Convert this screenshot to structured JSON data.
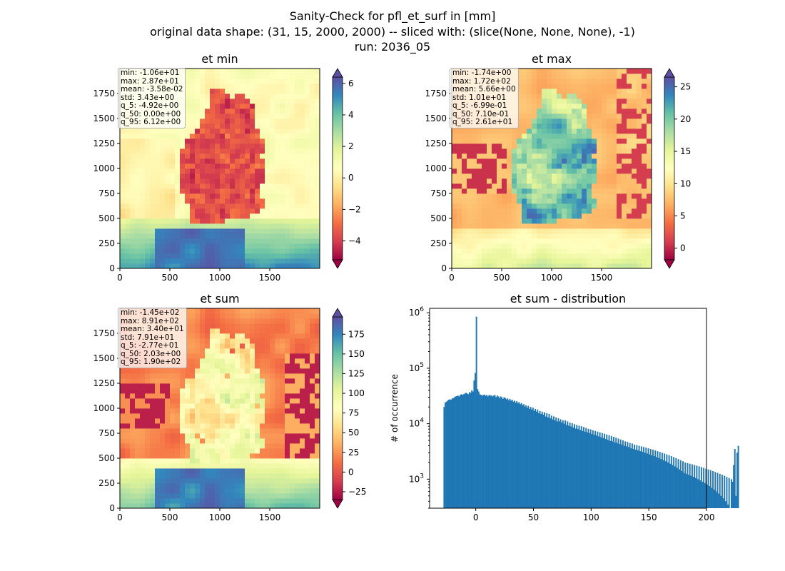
{
  "figure": {
    "title_line1": "Sanity-Check for pfl_et_surf in [mm]",
    "title_line2": "original data shape: (31, 15, 2000, 2000) -- sliced with: (slice(None, None, None), -1)",
    "title_line3": "run: 2036_05"
  },
  "chart_data": [
    {
      "type": "heatmap",
      "title": "et min",
      "x_ticks": [
        "0",
        "500",
        "1000",
        "1500"
      ],
      "y_ticks": [
        "0",
        "250",
        "500",
        "750",
        "1000",
        "1250",
        "1500",
        "1750"
      ],
      "xlim": [
        0,
        2000
      ],
      "ylim": [
        0,
        2000
      ],
      "colormap": "Spectral",
      "colorbar": {
        "range": [
          -5.2,
          6.4
        ],
        "ticks": [
          -4,
          -2,
          0,
          2,
          4,
          6
        ],
        "tick_labels": [
          "−4",
          "−2",
          "0",
          "2",
          "4",
          "6"
        ],
        "extend": "both"
      },
      "stats": [
        "min: -1.06e+01",
        "max: 2.87e+01",
        "mean: -3.58e-02",
        "std: 3.43e+00",
        "q_5: -4.92e+00",
        "q_50: 0.00e+00",
        "q_95: 6.12e+00"
      ]
    },
    {
      "type": "heatmap",
      "title": "et max",
      "x_ticks": [
        "0",
        "500",
        "1000",
        "1500"
      ],
      "y_ticks": [
        "0",
        "250",
        "500",
        "750",
        "1000",
        "1250",
        "1500",
        "1750"
      ],
      "xlim": [
        0,
        2000
      ],
      "ylim": [
        0,
        2000
      ],
      "colormap": "Spectral",
      "colorbar": {
        "range": [
          -1.8,
          26.5
        ],
        "ticks": [
          0,
          5,
          10,
          15,
          20,
          25
        ],
        "tick_labels": [
          "0",
          "5",
          "10",
          "15",
          "20",
          "25"
        ],
        "extend": "both"
      },
      "stats": [
        "min: -1.74e+00",
        "max: 1.72e+02",
        "mean: 5.66e+00",
        "std: 1.01e+01",
        "q_5: -6.99e-01",
        "q_50: 7.10e-01",
        "q_95: 2.61e+01"
      ]
    },
    {
      "type": "heatmap",
      "title": "et sum",
      "x_ticks": [
        "0",
        "500",
        "1000",
        "1500"
      ],
      "y_ticks": [
        "0",
        "250",
        "500",
        "750",
        "1000",
        "1250",
        "1500",
        "1750"
      ],
      "xlim": [
        0,
        2000
      ],
      "ylim": [
        0,
        2000
      ],
      "colormap": "Spectral",
      "colorbar": {
        "range": [
          -35,
          197
        ],
        "ticks": [
          -25,
          0,
          25,
          50,
          75,
          100,
          125,
          150,
          175
        ],
        "tick_labels": [
          "−25",
          "0",
          "25",
          "50",
          "75",
          "100",
          "125",
          "150",
          "175"
        ],
        "extend": "both"
      },
      "stats": [
        "min: -1.45e+02",
        "max: 8.91e+02",
        "mean: 3.40e+01",
        "std: 7.91e+01",
        "q_5: -2.77e+01",
        "q_50: 2.03e+00",
        "q_95: 1.90e+02"
      ]
    },
    {
      "type": "bar",
      "title": "et sum - distribution",
      "xlabel": "",
      "ylabel": "# of occurrence",
      "yscale": "log",
      "xlim": [
        -40,
        200
      ],
      "ylim": [
        300,
        1200000
      ],
      "x_ticks": [
        0,
        50,
        100,
        150,
        200
      ],
      "y_ticks": [
        1000,
        10000,
        100000,
        1000000
      ],
      "y_tick_labels": [
        [
          "10",
          "3"
        ],
        [
          "10",
          "4"
        ],
        [
          "10",
          "5"
        ],
        [
          "10",
          "6"
        ]
      ],
      "color": "#1f77b4",
      "bin_start": -28,
      "bin_width": 1,
      "counts": [
        20000,
        24000,
        25000,
        26000,
        27000,
        27500,
        27000,
        28500,
        29000,
        30000,
        31000,
        31500,
        32000,
        31000,
        33000,
        34000,
        33000,
        34000,
        35000,
        36000,
        35000,
        34000,
        37000,
        36000,
        40000,
        38000,
        60000,
        82000,
        850000,
        42000,
        38000,
        34000,
        33000,
        32000,
        33000,
        33500,
        32000,
        33000,
        31000,
        33000,
        32000,
        32500,
        31000,
        32000,
        33000,
        30000,
        32000,
        31000,
        29000,
        31000,
        30000,
        28000,
        30000,
        29000,
        27500,
        28500,
        26500,
        28000,
        26000,
        27000,
        25000,
        26000,
        24000,
        25500,
        23500,
        24500,
        22500,
        23500,
        21500,
        22500,
        20500,
        21500,
        19500,
        21000,
        18500,
        20000,
        18000,
        19500,
        17000,
        18500,
        16500,
        18000,
        15500,
        17000,
        15000,
        16500,
        14500,
        16000,
        13500,
        15500,
        13000,
        15000,
        12500,
        14000,
        12000,
        13500,
        11500,
        13000,
        11000,
        12500,
        11000,
        12000,
        10500,
        11500,
        10000,
        11500,
        9500,
        11000,
        9200,
        10500,
        8900,
        10200,
        8500,
        9800,
        8200,
        9500,
        8000,
        9200,
        7700,
        9000,
        7400,
        8700,
        7200,
        8400,
        7000,
        8100,
        6800,
        7900,
        6500,
        7600,
        6300,
        7400,
        6100,
        7200,
        5900,
        7000,
        5700,
        6800,
        5500,
        6600,
        5300,
        6400,
        5100,
        6200,
        4900,
        6000,
        4800,
        5800,
        4600,
        5600,
        4500,
        5400,
        4300,
        5200,
        4200,
        5000,
        4000,
        4800,
        3900,
        4700,
        3800,
        4500,
        3600,
        4400,
        3500,
        4200,
        3400,
        4100,
        3300,
        4000,
        3200,
        3900,
        3100,
        3800,
        3000,
        3700,
        2900,
        3600,
        2800,
        3500,
        2700,
        3400,
        2600,
        3300,
        2500,
        3200,
        2400,
        3100,
        2300,
        3000,
        2200,
        2900,
        2100,
        2800,
        2000,
        2700,
        1900,
        2600,
        1800,
        2500,
        1700,
        2400,
        1600,
        2300,
        1500,
        2200,
        1400,
        2100,
        1300,
        2000,
        1250,
        1950,
        1200,
        1900,
        1150,
        1850,
        1100,
        1800,
        1050,
        1750,
        1000,
        1700,
        950,
        1650,
        900,
        1600,
        850,
        1550,
        800,
        1500,
        750,
        1450,
        700,
        1400,
        650,
        1350,
        600,
        1300,
        550,
        1250,
        500,
        1200,
        450,
        1150,
        400,
        1100,
        350,
        1050,
        300,
        1000,
        900,
        1800,
        3500,
        500,
        3000,
        4000
      ]
    }
  ]
}
